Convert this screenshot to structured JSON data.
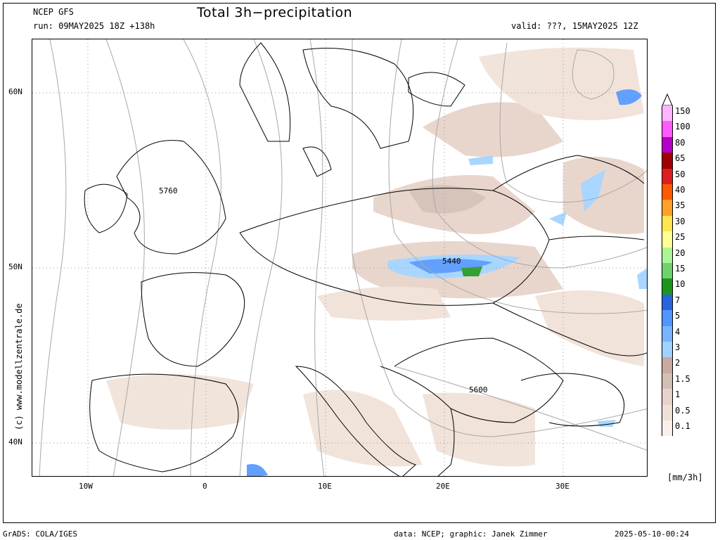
{
  "header": {
    "model": "NCEP GFS",
    "run": "run: 09MAY2025 18Z +138h",
    "title": "Total 3h−precipitation",
    "valid": "valid: ???, 15MAY2025 12Z"
  },
  "axes": {
    "lat_labels": [
      "60N",
      "50N",
      "40N"
    ],
    "lon_labels": [
      "10W",
      "0",
      "10E",
      "20E",
      "30E"
    ]
  },
  "contours": [
    "5760",
    "5440",
    "5600"
  ],
  "watermark": "(c) www.modellzentrale.de",
  "legend": {
    "levels": [
      "150",
      "100",
      "80",
      "65",
      "50",
      "40",
      "35",
      "30",
      "25",
      "20",
      "15",
      "10",
      "7",
      "5",
      "4",
      "3",
      "2",
      "1.5",
      "1",
      "0.5",
      "0.1"
    ],
    "colors": [
      "#ffb4ff",
      "#ff5aff",
      "#b400c8",
      "#a00000",
      "#dc1e1e",
      "#ff5a00",
      "#ffa028",
      "#ffe650",
      "#ffff96",
      "#aaf596",
      "#6ed36e",
      "#1e961e",
      "#2864dc",
      "#5096ff",
      "#78b4ff",
      "#a0d2ff",
      "#c8aaa0",
      "#d2beb4",
      "#e6d2c8",
      "#f0e1d7",
      "#faf0eb"
    ],
    "unit": "[mm/3h]"
  },
  "footer": {
    "left": "GrADS: COLA/IGES",
    "credit": "data: NCEP; graphic: Janek Zimmer",
    "timestamp": "2025-05-10-00:24"
  }
}
